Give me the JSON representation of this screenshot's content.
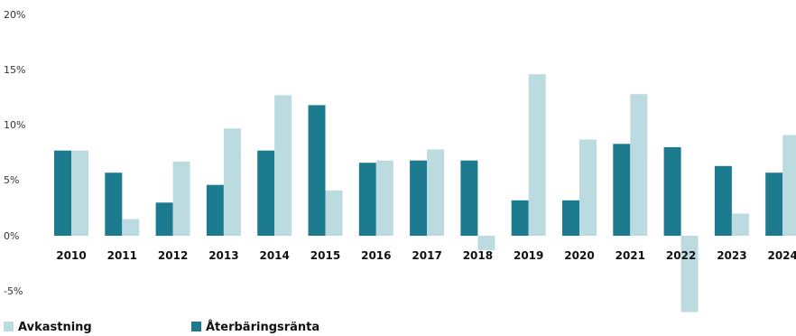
{
  "chart_data": {
    "type": "bar",
    "title": "",
    "xlabel": "",
    "ylabel": "",
    "categories": [
      "2010",
      "2011",
      "2012",
      "2013",
      "2014",
      "2015",
      "2016",
      "2017",
      "2018",
      "2019",
      "2020",
      "2021",
      "2022",
      "2023",
      "2024"
    ],
    "series": [
      {
        "name": "Återbäringsränta",
        "color": "#1d7b8f",
        "values": [
          7.7,
          5.7,
          3.0,
          4.6,
          7.7,
          11.8,
          6.6,
          6.8,
          6.8,
          3.2,
          3.2,
          8.3,
          8.0,
          6.3,
          5.7
        ]
      },
      {
        "name": "Avkastning",
        "color": "#bcdbe1",
        "values": [
          7.7,
          1.5,
          6.7,
          9.7,
          12.7,
          4.1,
          6.8,
          7.8,
          -1.3,
          14.6,
          8.7,
          12.8,
          -6.9,
          2.0,
          9.1
        ]
      }
    ],
    "yticks": [
      "20%",
      "15%",
      "10%",
      "5%",
      "0%",
      "-5%"
    ],
    "ylim": [
      -7,
      20
    ],
    "legend_position": "bottom-left",
    "grid": false
  }
}
